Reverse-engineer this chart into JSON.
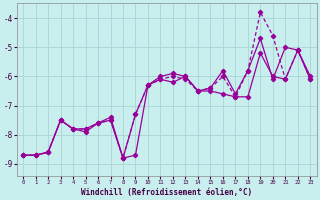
{
  "title": "",
  "xlabel": "Windchill (Refroidissement éolien,°C)",
  "bg_color": "#c8eeee",
  "grid_color": "#aad4d4",
  "line_color": "#990099",
  "xlim": [
    -0.5,
    23.5
  ],
  "ylim": [
    -9.4,
    -3.5
  ],
  "yticks": [
    -9,
    -8,
    -7,
    -6,
    -5,
    -4
  ],
  "xticks": [
    0,
    1,
    2,
    3,
    4,
    5,
    6,
    7,
    8,
    9,
    10,
    11,
    12,
    13,
    14,
    15,
    16,
    17,
    18,
    19,
    20,
    21,
    22,
    23
  ],
  "line1_x": [
    0,
    1,
    2,
    3,
    4,
    5,
    6,
    7,
    8,
    9,
    10,
    11,
    12,
    13,
    14,
    15,
    16,
    17,
    18,
    19,
    20,
    21,
    22,
    23
  ],
  "line1_y": [
    -8.7,
    -8.7,
    -8.6,
    -7.5,
    -7.8,
    -7.9,
    -7.6,
    -7.5,
    -8.8,
    -7.3,
    -6.3,
    -6.1,
    -6.2,
    -6.0,
    -6.5,
    -6.5,
    -6.6,
    -6.7,
    -6.7,
    -5.2,
    -6.0,
    -6.1,
    -5.1,
    -6.0
  ],
  "line2_x": [
    0,
    1,
    2,
    3,
    4,
    5,
    6,
    7,
    8,
    9,
    10,
    11,
    12,
    13,
    14,
    15,
    16,
    17,
    18,
    19,
    20,
    21,
    22,
    23
  ],
  "line2_y": [
    -8.7,
    -8.7,
    -8.6,
    -7.5,
    -7.8,
    -7.8,
    -7.6,
    -7.4,
    -8.8,
    -8.7,
    -6.3,
    -6.0,
    -5.9,
    -6.0,
    -6.5,
    -6.4,
    -5.8,
    -6.6,
    -5.8,
    -4.7,
    -6.1,
    -5.0,
    -5.1,
    -6.1
  ],
  "line3_x": [
    0,
    1,
    2,
    3,
    4,
    5,
    6,
    7,
    8,
    9,
    10,
    11,
    12,
    13,
    14,
    15,
    16,
    17,
    18,
    19,
    20,
    21,
    22,
    23
  ],
  "line3_y": [
    -8.7,
    -8.7,
    -8.6,
    -7.5,
    -7.8,
    -7.8,
    -7.6,
    -7.5,
    -8.8,
    -7.3,
    -6.3,
    -6.1,
    -6.0,
    -6.1,
    -6.5,
    -6.4,
    -6.0,
    -6.7,
    -5.8,
    -3.8,
    -4.6,
    -6.1,
    -5.1,
    -6.1
  ]
}
